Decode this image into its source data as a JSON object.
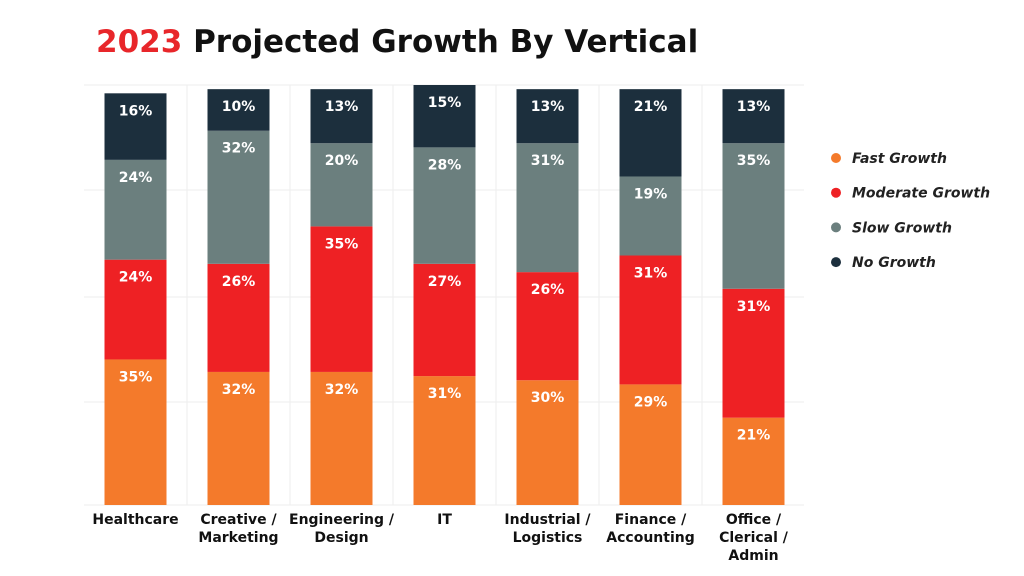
{
  "chart_data": {
    "type": "stacked_bar",
    "title": {
      "highlight": "2023",
      "text": "Projected Growth By Vertical"
    },
    "categories": [
      "Healthcare",
      "Creative / Marketing",
      "Engineering / Design",
      "IT",
      "Industrial / Logistics",
      "Finance / Accounting",
      "Office / Clerical / Admin"
    ],
    "series": [
      {
        "name": "Fast Growth",
        "color": "#f47a2b",
        "values": [
          35,
          32,
          32,
          31,
          30,
          29,
          21
        ],
        "value_labels": [
          "35%",
          "32%",
          "32%",
          "31%",
          "30%",
          "29%",
          "21%"
        ]
      },
      {
        "name": "Moderate Growth",
        "color": "#ee2124",
        "values": [
          24,
          26,
          35,
          27,
          26,
          31,
          31
        ],
        "value_labels": [
          "24%",
          "26%",
          "35%",
          "27%",
          "26%",
          "31%",
          "31%"
        ]
      },
      {
        "name": "Slow Growth",
        "color": "#6b7f7e",
        "values": [
          24,
          32,
          20,
          28,
          31,
          19,
          35
        ],
        "value_labels": [
          "24%",
          "32%",
          "20%",
          "28%",
          "31%",
          "19%",
          "35%"
        ]
      },
      {
        "name": "No Growth",
        "color": "#1c2f3d",
        "values": [
          16,
          10,
          13,
          15,
          13,
          21,
          13
        ],
        "value_labels": [
          "16%",
          "10%",
          "13%",
          "15%",
          "13%",
          "21%",
          "13%"
        ]
      }
    ],
    "legend": "right"
  }
}
